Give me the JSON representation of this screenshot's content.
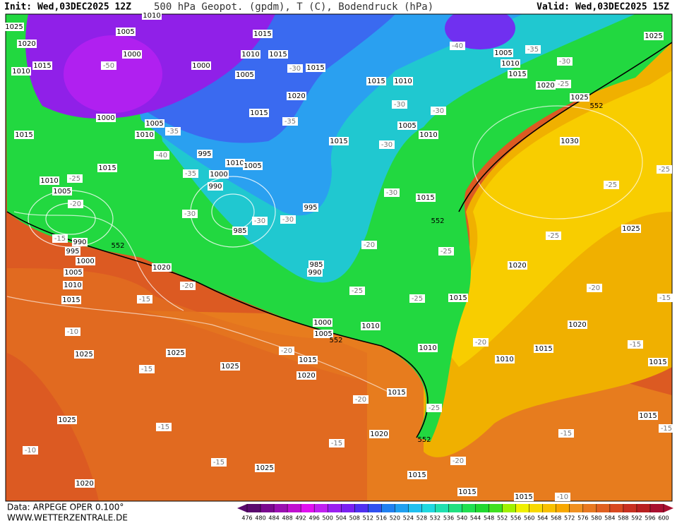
{
  "header": {
    "init": "Init: Wed,03DEC2025 12Z",
    "title": "500 hPa Geopot. (gpdm), T (C), Bodendruck (hPa)",
    "valid": "Valid: Wed,03DEC2025 15Z"
  },
  "footer": {
    "source": "Data: ARPEGE OPER 0.100°",
    "site": "WWW.WETTERZENTRALE.DE"
  },
  "colorbar": {
    "ticks": [
      476,
      480,
      484,
      488,
      492,
      496,
      500,
      504,
      508,
      512,
      516,
      520,
      524,
      528,
      532,
      536,
      540,
      544,
      548,
      552,
      556,
      560,
      564,
      568,
      572,
      576,
      580,
      584,
      588,
      592,
      596,
      600
    ],
    "colors": [
      "#5a0a6e",
      "#7a0a8e",
      "#9a10b0",
      "#c010d0",
      "#e010f0",
      "#c020f0",
      "#9a20f0",
      "#7a20f0",
      "#5030f0",
      "#3050f0",
      "#2080f0",
      "#20a0f0",
      "#20c0f0",
      "#20d8e0",
      "#20e0b0",
      "#20e080",
      "#20e050",
      "#20d830",
      "#40e020",
      "#a0f000",
      "#f0f000",
      "#f8d800",
      "#f8c000",
      "#f8a800",
      "#f09020",
      "#e87820",
      "#e06020",
      "#d84820",
      "#c83020",
      "#b82020",
      "#a81030"
    ]
  },
  "map": {
    "pressure_labels": [
      1010,
      1025,
      1005,
      1020,
      1015,
      1000,
      1010,
      1015,
      1015,
      1010,
      1000,
      1005,
      1015,
      1015,
      1010,
      1020,
      1015,
      1000,
      1005,
      1010,
      1015,
      1005,
      1010,
      1015,
      995,
      1010,
      1005,
      1015,
      1000,
      1010,
      990,
      1005,
      995,
      985,
      990,
      995,
      1000,
      1005,
      1010,
      1015,
      985,
      990,
      1020,
      1015,
      1005,
      1010,
      1015,
      1020,
      1025,
      1025,
      1030,
      1025,
      1020,
      1015,
      1000,
      1005,
      1010,
      1020,
      1015,
      1010,
      1010,
      1015,
      1025,
      1025,
      1025,
      1015,
      1020,
      1015,
      1020,
      1025,
      1025,
      1015,
      1020,
      1015,
      1015,
      1015
    ],
    "temperature_labels": [
      -50,
      -40,
      -35,
      -30,
      -25,
      -30,
      -35,
      -30,
      -30,
      -35,
      -40,
      -35,
      -30,
      -25,
      -20,
      -30,
      -30,
      -30,
      -30,
      -15,
      -25,
      -25,
      -25,
      -20,
      -25,
      -20,
      -15,
      -25,
      -25,
      -20,
      -15,
      -10,
      -20,
      -20,
      -15,
      -15,
      -20,
      -25,
      -15,
      -15,
      -20,
      -10,
      -15,
      -15,
      -10,
      -15
    ],
    "geopotential_labels": [
      552,
      552,
      552,
      552,
      552
    ]
  }
}
